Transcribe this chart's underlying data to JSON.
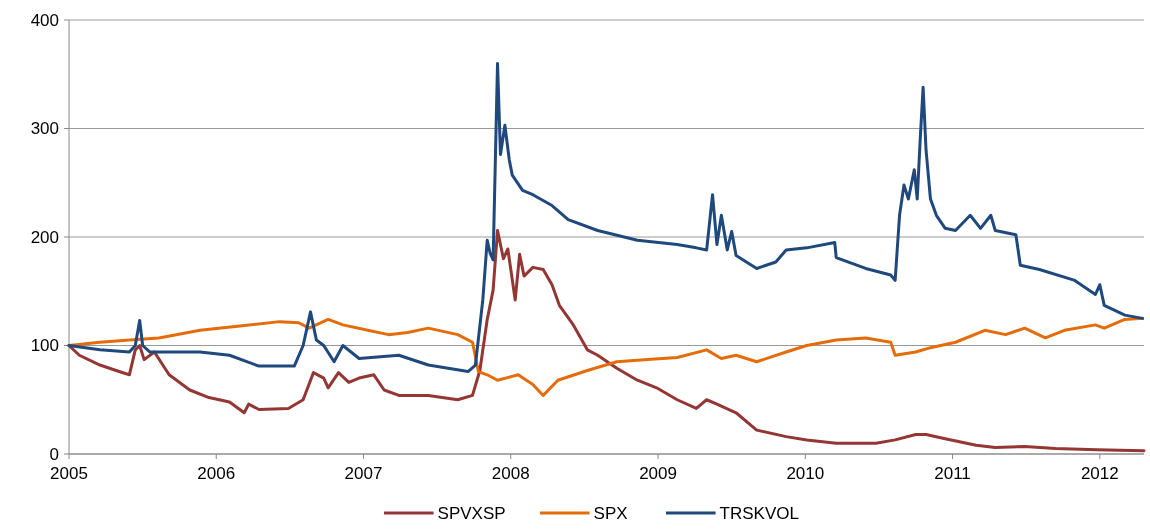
{
  "chart_data": {
    "type": "line",
    "xlim": [
      2005,
      2012.3
    ],
    "xticks": [
      2005,
      2006,
      2007,
      2008,
      2009,
      2010,
      2011,
      2012
    ],
    "ylim": [
      0,
      400
    ],
    "yticks": [
      0,
      100,
      200,
      300,
      400
    ],
    "grid": "y",
    "legend": "bottom",
    "marker": "none",
    "line_style": "solid",
    "series": [
      {
        "name": "SPVXSP",
        "color": "#943634",
        "x": [
          2005,
          2005.07,
          2005.21,
          2005.34,
          2005.41,
          2005.45,
          2005.48,
          2005.51,
          2005.58,
          2005.68,
          2005.82,
          2005.95,
          2006.09,
          2006.19,
          2006.22,
          2006.29,
          2006.49,
          2006.59,
          2006.66,
          2006.73,
          2006.76,
          2006.83,
          2006.9,
          2006.97,
          2007.07,
          2007.14,
          2007.24,
          2007.44,
          2007.64,
          2007.74,
          2007.79,
          2007.84,
          2007.88,
          2007.91,
          2007.95,
          2007.98,
          2008.03,
          2008.06,
          2008.09,
          2008.15,
          2008.22,
          2008.28,
          2008.33,
          2008.42,
          2008.52,
          2008.59,
          2008.72,
          2008.86,
          2008.99,
          2009.13,
          2009.26,
          2009.33,
          2009.4,
          2009.53,
          2009.67,
          2009.87,
          2010.01,
          2010.21,
          2010.48,
          2010.61,
          2010.75,
          2010.82,
          2010.95,
          2011.16,
          2011.29,
          2011.49,
          2011.7,
          2011.98,
          2012.3
        ],
        "values": [
          100,
          91,
          82,
          76,
          73,
          96,
          100,
          87,
          94,
          73,
          59,
          52,
          48,
          38,
          46,
          41,
          42,
          50,
          75,
          70,
          61,
          75,
          66,
          70,
          73,
          59,
          54,
          54,
          50,
          54,
          77,
          124,
          151,
          206,
          180,
          189,
          142,
          184,
          164,
          172,
          170,
          156,
          137,
          120,
          96,
          91,
          79,
          68,
          61,
          50,
          42,
          50,
          46,
          38,
          22,
          16,
          13,
          10,
          10,
          13,
          18,
          18,
          14,
          8,
          6,
          7,
          5,
          4,
          3
        ]
      },
      {
        "name": "SPX",
        "color": "#e46c0a",
        "x": [
          2005,
          2005.21,
          2005.41,
          2005.61,
          2005.89,
          2006.16,
          2006.43,
          2006.56,
          2006.63,
          2006.76,
          2006.86,
          2007.03,
          2007.17,
          2007.3,
          2007.44,
          2007.64,
          2007.74,
          2007.78,
          2007.84,
          2007.91,
          2008.05,
          2008.15,
          2008.22,
          2008.32,
          2008.52,
          2008.72,
          2008.93,
          2009.13,
          2009.33,
          2009.43,
          2009.53,
          2009.67,
          2009.87,
          2010.01,
          2010.21,
          2010.41,
          2010.58,
          2010.61,
          2010.75,
          2010.85,
          2011.02,
          2011.22,
          2011.36,
          2011.49,
          2011.63,
          2011.76,
          2011.97,
          2012.03,
          2012.17,
          2012.29
        ],
        "values": [
          100,
          103,
          105,
          107,
          114,
          118,
          122,
          121,
          116,
          124,
          119,
          114,
          110,
          112,
          116,
          110,
          103,
          76,
          73,
          68,
          73,
          64,
          54,
          68,
          77,
          85,
          87,
          89,
          96,
          88,
          91,
          85,
          94,
          100,
          105,
          107,
          103,
          91,
          94,
          98,
          103,
          114,
          110,
          116,
          107,
          114,
          119,
          116,
          124,
          125
        ]
      },
      {
        "name": "TRSKVOL",
        "color": "#1f497d",
        "x": [
          2005,
          2005.21,
          2005.41,
          2005.45,
          2005.48,
          2005.5,
          2005.55,
          2005.89,
          2006.09,
          2006.29,
          2006.53,
          2006.59,
          2006.64,
          2006.68,
          2006.73,
          2006.8,
          2006.86,
          2006.97,
          2007.24,
          2007.44,
          2007.71,
          2007.76,
          2007.81,
          2007.84,
          2007.86,
          2007.88,
          2007.91,
          2007.93,
          2007.96,
          2007.99,
          2008.01,
          2008.08,
          2008.15,
          2008.28,
          2008.39,
          2008.59,
          2008.86,
          2009.13,
          2009.26,
          2009.33,
          2009.37,
          2009.4,
          2009.43,
          2009.47,
          2009.5,
          2009.53,
          2009.67,
          2009.8,
          2009.87,
          2010.01,
          2010.2,
          2010.21,
          2010.41,
          2010.58,
          2010.61,
          2010.64,
          2010.67,
          2010.7,
          2010.74,
          2010.76,
          2010.78,
          2010.8,
          2010.82,
          2010.85,
          2010.89,
          2010.95,
          2011.02,
          2011.12,
          2011.19,
          2011.26,
          2011.29,
          2011.43,
          2011.46,
          2011.59,
          2011.83,
          2011.97,
          2012,
          2012.03,
          2012.17,
          2012.29
        ],
        "values": [
          100,
          96,
          94,
          100,
          123,
          100,
          94,
          94,
          91,
          81,
          81,
          100,
          131,
          105,
          100,
          85,
          100,
          88,
          91,
          82,
          76,
          82,
          142,
          197,
          185,
          179,
          360,
          276,
          303,
          271,
          257,
          243,
          239,
          229,
          216,
          206,
          197,
          193,
          190,
          188,
          239,
          193,
          220,
          188,
          205,
          183,
          171,
          177,
          188,
          190,
          195,
          181,
          171,
          165,
          160,
          220,
          248,
          235,
          262,
          235,
          289,
          338,
          280,
          235,
          220,
          208,
          206,
          220,
          208,
          220,
          206,
          202,
          174,
          170,
          160,
          147,
          156,
          137,
          128,
          125
        ]
      }
    ]
  }
}
